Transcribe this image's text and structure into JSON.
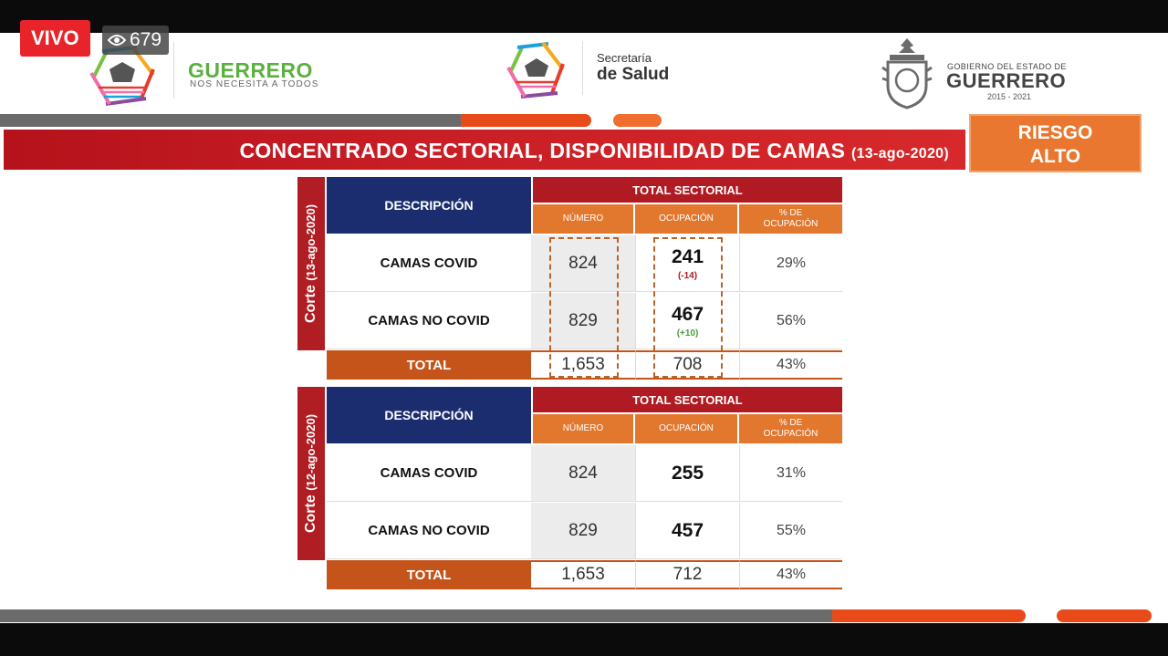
{
  "stream": {
    "live_label": "VIVO",
    "viewer_count": "679"
  },
  "header": {
    "brand_left": {
      "name": "GUERRERO",
      "tagline": "NOS NECESITA A TODOS"
    },
    "brand_center": {
      "line1": "Secretaría",
      "line2": "de Salud"
    },
    "brand_right": {
      "line1": "GOBIERNO DEL ESTADO DE",
      "line2": "GUERRERO",
      "line3": "2015 - 2021"
    }
  },
  "title": {
    "text": "CONCENTRADO SECTORIAL, DISPONIBILIDAD DE CAMAS",
    "date": "(13-ago-2020)"
  },
  "risk": {
    "line1": "RIESGO",
    "line2": "ALTO"
  },
  "tables": [
    {
      "corte_label": "Corte",
      "corte_date": "(13-ago-2020)",
      "header_desc": "DESCRIPCIÓN",
      "header_total": "TOTAL SECTORIAL",
      "col_numero": "NÚMERO",
      "col_ocupacion": "OCUPACIÓN",
      "col_pct": "% DE OCUPACIÓN",
      "rows": [
        {
          "label": "CAMAS COVID",
          "numero": "824",
          "ocupacion": "241",
          "delta": "(-14)",
          "pct": "29%"
        },
        {
          "label": "CAMAS NO COVID",
          "numero": "829",
          "ocupacion": "467",
          "delta": "(+10)",
          "pct": "56%"
        }
      ],
      "total": {
        "label": "TOTAL",
        "numero": "1,653",
        "ocupacion": "708",
        "pct": "43%"
      }
    },
    {
      "corte_label": "Corte",
      "corte_date": "(12-ago-2020)",
      "header_desc": "DESCRIPCIÓN",
      "header_total": "TOTAL SECTORIAL",
      "col_numero": "NÚMERO",
      "col_ocupacion": "OCUPACIÓN",
      "col_pct": "% DE OCUPACIÓN",
      "rows": [
        {
          "label": "CAMAS COVID",
          "numero": "824",
          "ocupacion": "255",
          "pct": "31%"
        },
        {
          "label": "CAMAS NO COVID",
          "numero": "829",
          "ocupacion": "457",
          "pct": "55%"
        }
      ],
      "total": {
        "label": "TOTAL",
        "numero": "1,653",
        "ocupacion": "712",
        "pct": "43%"
      }
    }
  ],
  "icons": {
    "viewers": "eye-icon"
  },
  "colors": {
    "navy": "#1b2d6e",
    "red": "#b01a22",
    "orange": "#e2772e",
    "green": "#5cb040"
  }
}
